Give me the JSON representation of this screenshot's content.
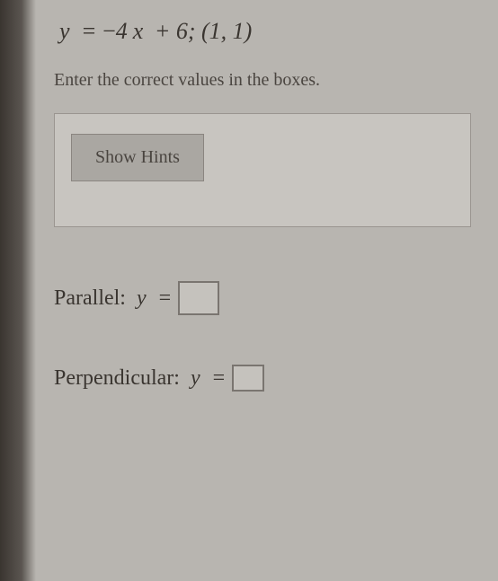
{
  "problem": {
    "equation_html": "<span class='math-var'>y</span> = <span class='minus'>−</span>4<span class='math-var'>x</span> + 6; (1, 1)",
    "instruction": "Enter the correct values in the boxes."
  },
  "hints": {
    "button_label": "Show Hints"
  },
  "answers": {
    "parallel": {
      "label": "Parallel:",
      "variable": "y",
      "value": ""
    },
    "perpendicular": {
      "label": "Perpendicular:",
      "variable": "y",
      "value": ""
    }
  },
  "colors": {
    "background": "#b8b5b0",
    "text": "#4a4540",
    "button_bg": "#aaa7a2",
    "border": "#9a9590"
  }
}
